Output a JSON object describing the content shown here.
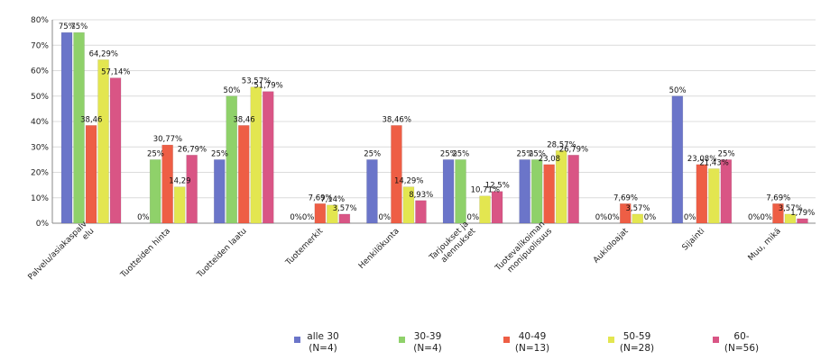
{
  "chart_data": {
    "type": "bar",
    "categories": [
      [
        "Palvelu/asiakaspalv",
        "elu"
      ],
      [
        "Tuotteiden hinta"
      ],
      [
        "Tuotteiden laatu"
      ],
      [
        "Tuotemerkit"
      ],
      [
        "Henkilökunta"
      ],
      [
        "Tarjoukset ja",
        "alennukset"
      ],
      [
        "Tuotevalikoiman",
        "monipuolisuus"
      ],
      [
        "Aukioloajat"
      ],
      [
        "Sijainti"
      ],
      [
        "Muu, mikä"
      ]
    ],
    "series": [
      {
        "name": [
          "alle 30",
          "(N=4)"
        ],
        "color": "#6b75c9",
        "values": [
          75,
          0,
          25,
          0,
          25,
          25,
          25,
          0,
          50,
          0
        ],
        "labels": [
          "75%",
          "0%",
          "25%",
          "0%",
          "25%",
          "25%",
          "25%",
          "0%",
          "50%",
          "0%"
        ]
      },
      {
        "name": [
          "30-39",
          "(N=4)"
        ],
        "color": "#8fd16a",
        "values": [
          75,
          25,
          50,
          0,
          0,
          25,
          25,
          0,
          0,
          0
        ],
        "labels": [
          "75%",
          "25%",
          "50%",
          "0%",
          "0%",
          "25%",
          "25%",
          "0%",
          "0%",
          "0%"
        ]
      },
      {
        "name": [
          "40-49",
          "(N=13)"
        ],
        "color": "#ee5e45",
        "values": [
          38.46,
          30.77,
          38.46,
          7.69,
          38.46,
          0,
          23.08,
          7.69,
          23.08,
          7.69
        ],
        "labels": [
          "38,46",
          "30,77%",
          "38,46",
          "7,69%",
          "38,46%",
          "0%",
          "23,08",
          "7,69%",
          "23,08%",
          "7,69%"
        ]
      },
      {
        "name": [
          "50-59",
          "(N=28)"
        ],
        "color": "#e3e650",
        "values": [
          64.29,
          14.29,
          53.57,
          7.14,
          14.29,
          10.71,
          28.57,
          3.57,
          21.43,
          3.57
        ],
        "labels": [
          "64,29%",
          "14,29",
          "53,57%",
          "7,14%",
          "14,29%",
          "10,71%",
          "28,57%",
          "3,57%",
          "21,43%",
          "3,57%"
        ]
      },
      {
        "name": [
          "60-",
          "(N=56)"
        ],
        "color": "#d95585",
        "values": [
          57.14,
          26.79,
          51.79,
          3.57,
          8.93,
          12.5,
          26.79,
          0,
          25,
          1.79
        ],
        "labels": [
          "57,14%",
          "26,79%",
          "51,79%",
          "3,57%",
          "8,93%",
          "12,5%",
          "26,79%",
          "0%",
          "25%",
          "1,79%"
        ]
      }
    ],
    "yticks": [
      "0%",
      "10%",
      "20%",
      "30%",
      "40%",
      "50%",
      "60%",
      "70%",
      "80%"
    ],
    "ylim": [
      0,
      80
    ],
    "grid": true,
    "legend": "bottom"
  }
}
